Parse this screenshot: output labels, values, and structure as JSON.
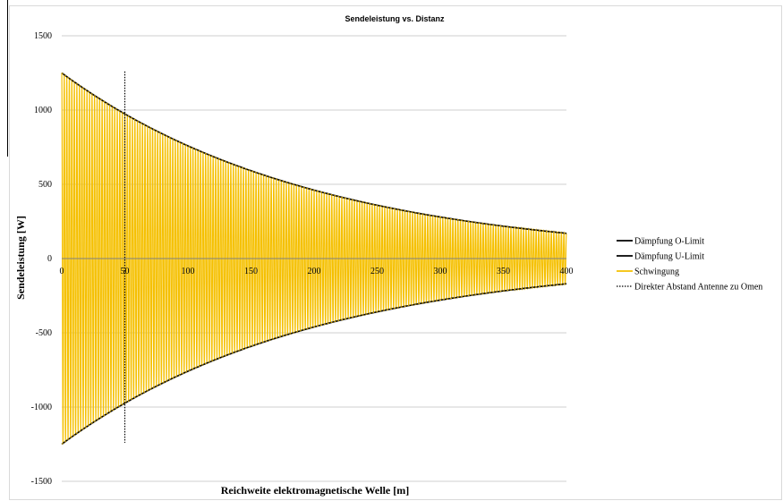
{
  "chart_data": {
    "type": "line",
    "title": "Sendeleistung vs. Distanz",
    "xlabel": "Reichweite elektromagnetische Welle [m]",
    "ylabel": "Sendeleistung [W]",
    "xlim": [
      0,
      400
    ],
    "ylim": [
      -1500,
      1500
    ],
    "x_ticks": [
      "0",
      "50",
      "100",
      "150",
      "200",
      "250",
      "300",
      "350",
      "400"
    ],
    "y_ticks": [
      "1500",
      "1000",
      "500",
      "0",
      "-500",
      "-1000",
      "-1500"
    ],
    "grid": "horizontal",
    "legend_position": "right",
    "envelope": {
      "amplitude_at_0": 1250,
      "amplitude_at_400": 170
    },
    "oscillation_periods": 200,
    "vertical_marker_x": 50,
    "vertical_marker_range": [
      -1240,
      1260
    ],
    "series": [
      {
        "name": "Dämpfung O-Limit",
        "color": "#000000",
        "style": "solid",
        "x": [
          0,
          50,
          100,
          150,
          200,
          250,
          300,
          350,
          400
        ],
        "values": [
          1250,
          976,
          763,
          596,
          466,
          364,
          284,
          222,
          170
        ]
      },
      {
        "name": "Dämpfung U-Limit",
        "color": "#000000",
        "style": "solid",
        "x": [
          0,
          50,
          100,
          150,
          200,
          250,
          300,
          350,
          400
        ],
        "values": [
          -1250,
          -976,
          -763,
          -596,
          -466,
          -364,
          -284,
          -222,
          -170
        ]
      },
      {
        "name": "Schwingung",
        "color": "#f5c000",
        "style": "solid"
      },
      {
        "name": "Direkter Abstand Antenne zu Omen",
        "color": "#000000",
        "style": "dotted"
      }
    ]
  }
}
